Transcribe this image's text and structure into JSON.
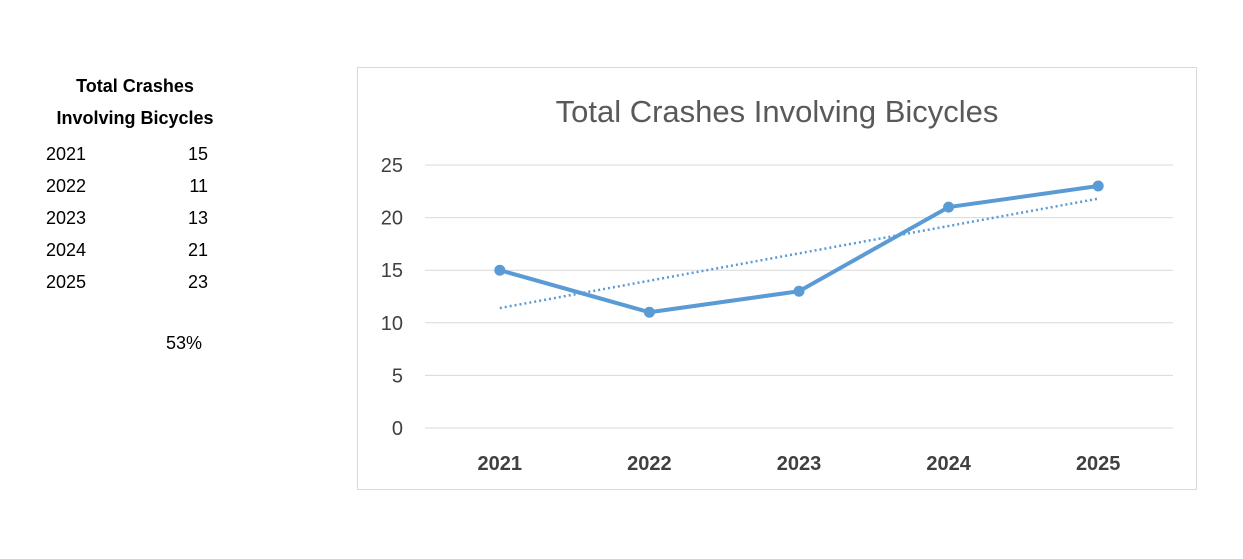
{
  "table": {
    "header_line1": "Total Crashes",
    "header_line2": "Involving Bicycles",
    "rows": [
      {
        "year": "2021",
        "value": "15"
      },
      {
        "year": "2022",
        "value": "11"
      },
      {
        "year": "2023",
        "value": "13"
      },
      {
        "year": "2024",
        "value": "21"
      },
      {
        "year": "2025",
        "value": "23"
      }
    ],
    "percent_change": "53%"
  },
  "chart_data": {
    "type": "line",
    "title": "Total Crashes Involving Bicycles",
    "categories": [
      "2021",
      "2022",
      "2023",
      "2024",
      "2025"
    ],
    "series": [
      {
        "values": [
          15,
          11,
          13,
          21,
          23
        ],
        "color": "#5b9bd5",
        "markers": true
      }
    ],
    "trendline": {
      "style": "dotted",
      "color": "#5b9bd5",
      "type": "linear"
    },
    "ylim": [
      0,
      25
    ],
    "yticks": [
      0,
      5,
      10,
      15,
      20,
      25
    ],
    "xlabel": "",
    "ylabel": "",
    "grid": true,
    "gridline_color": "#d9d9d9",
    "legend": "none"
  }
}
